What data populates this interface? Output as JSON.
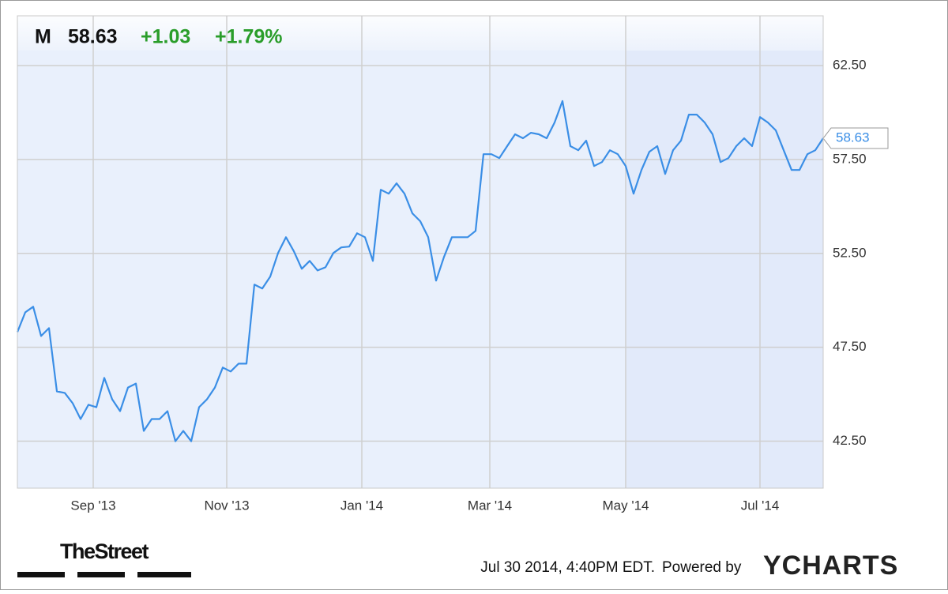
{
  "chart_data": {
    "type": "line",
    "ticker": "M",
    "price": "58.63",
    "change": "+1.03",
    "change_pct": "+1.79%",
    "series": [
      {
        "name": "M",
        "color": "#3a8ee6",
        "values": [
          48.31,
          49.36,
          49.66,
          48.1,
          48.52,
          45.15,
          45.07,
          44.52,
          43.68,
          44.44,
          44.31,
          45.87,
          44.73,
          44.1,
          45.36,
          45.57,
          43.05,
          43.68,
          43.68,
          44.1,
          42.5,
          43.05,
          42.5,
          44.31,
          44.73,
          45.36,
          46.42,
          46.21,
          46.63,
          46.63,
          50.84,
          50.63,
          51.26,
          52.52,
          53.36,
          52.61,
          51.68,
          52.1,
          51.59,
          51.76,
          52.52,
          52.82,
          52.86,
          53.57,
          53.36,
          52.1,
          55.89,
          55.68,
          56.23,
          55.68,
          54.63,
          54.21,
          53.36,
          51.05,
          52.31,
          53.36,
          53.36,
          53.36,
          53.7,
          57.78,
          57.78,
          57.57,
          58.21,
          58.84,
          58.63,
          58.92,
          58.84,
          58.63,
          59.47,
          60.61,
          58.21,
          57.99,
          58.5,
          57.15,
          57.36,
          57.99,
          57.78,
          57.15,
          55.68,
          56.94,
          57.91,
          58.21,
          56.73,
          57.99,
          58.5,
          59.89,
          59.89,
          59.47,
          58.84,
          57.36,
          57.57,
          58.21,
          58.63,
          58.21,
          59.76,
          59.47,
          59.05,
          57.99,
          56.94,
          56.94,
          57.78,
          57.99,
          58.63
        ]
      }
    ],
    "xlim": [
      0,
      102
    ],
    "xticks": [
      {
        "value": 9.6,
        "label": "Sep '13"
      },
      {
        "value": 26.5,
        "label": "Nov '13"
      },
      {
        "value": 43.6,
        "label": "Jan '14"
      },
      {
        "value": 59.8,
        "label": "Mar '14"
      },
      {
        "value": 77,
        "label": "May '14"
      },
      {
        "value": 94,
        "label": "Jul '14"
      }
    ],
    "ylim": [
      40,
      65.15
    ],
    "yticks": [
      {
        "value": 42.5,
        "label": "42.50"
      },
      {
        "value": 47.5,
        "label": "47.50"
      },
      {
        "value": 52.5,
        "label": "52.50"
      },
      {
        "value": 57.5,
        "label": "57.50"
      },
      {
        "value": 62.5,
        "label": "62.50"
      }
    ],
    "grid": true,
    "footer": {
      "source_logo": "TheStreet",
      "timestamp": "Jul 30 2014, 4:40PM EDT.",
      "powered_by": "Powered by",
      "brand": "YCHARTS"
    }
  }
}
